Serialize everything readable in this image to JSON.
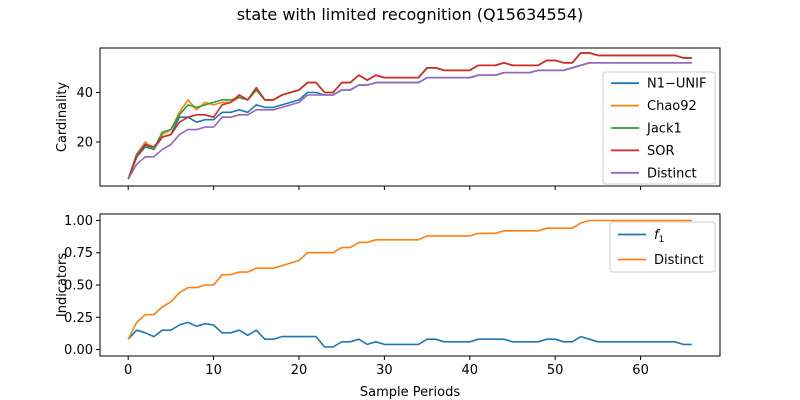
{
  "title": "state with limited recognition (Q15634554)",
  "colors": {
    "blue": "#1f77b4",
    "orange": "#ff7f0e",
    "green": "#2ca02c",
    "red": "#d62728",
    "purple": "#9467bd"
  },
  "chart_data": [
    {
      "type": "line",
      "ylabel": "Cardinality",
      "xlabel": "",
      "xlim": [
        -3.3,
        69.3
      ],
      "ylim": [
        2.2,
        58.0
      ],
      "xticks": [
        0,
        10,
        20,
        30,
        40,
        50,
        60
      ],
      "yticks": [
        20,
        40
      ],
      "legend": "center-right",
      "x": [
        0,
        1,
        2,
        3,
        4,
        5,
        6,
        7,
        8,
        9,
        10,
        11,
        12,
        13,
        14,
        15,
        16,
        17,
        18,
        19,
        20,
        21,
        22,
        23,
        24,
        25,
        26,
        27,
        28,
        29,
        30,
        31,
        32,
        33,
        34,
        35,
        36,
        37,
        38,
        39,
        40,
        41,
        42,
        43,
        44,
        45,
        46,
        47,
        48,
        49,
        50,
        51,
        52,
        53,
        54,
        55,
        56,
        57,
        58,
        59,
        60,
        61,
        62,
        63,
        64,
        65,
        66
      ],
      "series": [
        {
          "name": "N1−UNIF",
          "color": "blue",
          "values": [
            5,
            14,
            18,
            17,
            22,
            23,
            30,
            30,
            28,
            29,
            29,
            32,
            32,
            33,
            32,
            35,
            34,
            34,
            35,
            36,
            37,
            40,
            40,
            39,
            39,
            41,
            41,
            43,
            43,
            44,
            44,
            44,
            44,
            44,
            44,
            46,
            46,
            46,
            46,
            46,
            46,
            47,
            47,
            47,
            48,
            48,
            48,
            48,
            49,
            49,
            49,
            49,
            50,
            51,
            52,
            52,
            52,
            52,
            52,
            52,
            52,
            52,
            52,
            52,
            52,
            52,
            52
          ]
        },
        {
          "name": "Chao92",
          "color": "orange",
          "values": [
            5,
            15,
            20,
            17,
            23,
            25,
            32,
            37,
            33,
            36,
            35,
            36,
            36,
            38,
            37,
            41,
            37,
            37,
            39,
            40,
            41,
            44,
            44,
            40,
            40,
            44,
            44,
            47,
            45,
            47,
            46,
            46,
            46,
            46,
            46,
            50,
            50,
            49,
            49,
            49,
            49,
            51,
            51,
            51,
            52,
            51,
            51,
            51,
            51,
            53,
            53,
            52,
            52,
            56,
            56,
            55,
            55,
            55,
            55,
            55,
            55,
            55,
            55,
            55,
            55,
            54,
            54
          ]
        },
        {
          "name": "Jack1",
          "color": "green",
          "values": [
            5,
            15,
            19,
            17,
            24,
            25,
            31,
            35,
            34,
            35,
            36,
            37,
            37,
            38,
            37,
            41,
            37,
            37,
            39,
            40,
            41,
            44,
            44,
            40,
            40,
            44,
            44,
            47,
            45,
            47,
            46,
            46,
            46,
            46,
            46,
            50,
            50,
            49,
            49,
            49,
            49,
            51,
            51,
            51,
            52,
            51,
            51,
            51,
            51,
            53,
            53,
            52,
            52,
            56,
            56,
            55,
            55,
            55,
            55,
            55,
            55,
            55,
            55,
            55,
            55,
            54,
            54
          ]
        },
        {
          "name": "SOR",
          "color": "red",
          "values": [
            5,
            14,
            19,
            18,
            22,
            23,
            28,
            30,
            31,
            31,
            30,
            35,
            36,
            39,
            37,
            42,
            37,
            37,
            39,
            40,
            41,
            44,
            44,
            40,
            40,
            44,
            44,
            47,
            45,
            47,
            46,
            46,
            46,
            46,
            46,
            50,
            50,
            49,
            49,
            49,
            49,
            51,
            51,
            51,
            52,
            51,
            51,
            51,
            51,
            53,
            53,
            52,
            52,
            56,
            56,
            55,
            55,
            55,
            55,
            55,
            55,
            55,
            55,
            55,
            55,
            54,
            54
          ]
        },
        {
          "name": "Distinct",
          "color": "purple",
          "values": [
            5,
            11,
            14,
            14,
            17,
            19,
            23,
            25,
            25,
            26,
            26,
            30,
            30,
            31,
            31,
            33,
            33,
            33,
            34,
            35,
            36,
            39,
            39,
            39,
            39,
            41,
            41,
            43,
            43,
            44,
            44,
            44,
            44,
            44,
            44,
            46,
            46,
            46,
            46,
            46,
            46,
            47,
            47,
            47,
            48,
            48,
            48,
            48,
            49,
            49,
            49,
            49,
            50,
            51,
            52,
            52,
            52,
            52,
            52,
            52,
            52,
            52,
            52,
            52,
            52,
            52,
            52
          ]
        }
      ]
    },
    {
      "type": "line",
      "ylabel": "Indicators",
      "xlabel": "Sample Periods",
      "xlim": [
        -3.3,
        69.3
      ],
      "ylim": [
        -0.05,
        1.05
      ],
      "xticks": [
        0,
        10,
        20,
        30,
        40,
        50,
        60
      ],
      "yticks": [
        "0.00",
        "0.25",
        "0.50",
        "0.75",
        "1.00"
      ],
      "legend": "upper right",
      "x": [
        0,
        1,
        2,
        3,
        4,
        5,
        6,
        7,
        8,
        9,
        10,
        11,
        12,
        13,
        14,
        15,
        16,
        17,
        18,
        19,
        20,
        21,
        22,
        23,
        24,
        25,
        26,
        27,
        28,
        29,
        30,
        31,
        32,
        33,
        34,
        35,
        36,
        37,
        38,
        39,
        40,
        41,
        42,
        43,
        44,
        45,
        46,
        47,
        48,
        49,
        50,
        51,
        52,
        53,
        54,
        55,
        56,
        57,
        58,
        59,
        60,
        61,
        62,
        63,
        64,
        65,
        66
      ],
      "series": [
        {
          "name": "f1",
          "label_main": "f",
          "label_sub": "1",
          "color": "blue",
          "values": [
            0.08,
            0.15,
            0.13,
            0.1,
            0.15,
            0.15,
            0.19,
            0.21,
            0.18,
            0.2,
            0.19,
            0.13,
            0.13,
            0.15,
            0.11,
            0.15,
            0.08,
            0.08,
            0.1,
            0.1,
            0.1,
            0.1,
            0.1,
            0.02,
            0.02,
            0.06,
            0.06,
            0.08,
            0.04,
            0.06,
            0.04,
            0.04,
            0.04,
            0.04,
            0.04,
            0.08,
            0.08,
            0.06,
            0.06,
            0.06,
            0.06,
            0.08,
            0.08,
            0.08,
            0.08,
            0.06,
            0.06,
            0.06,
            0.06,
            0.08,
            0.08,
            0.06,
            0.06,
            0.1,
            0.08,
            0.06,
            0.06,
            0.06,
            0.06,
            0.06,
            0.06,
            0.06,
            0.06,
            0.06,
            0.06,
            0.04,
            0.04
          ]
        },
        {
          "name": "Distinct",
          "color": "orange",
          "values": [
            0.08,
            0.21,
            0.27,
            0.27,
            0.33,
            0.37,
            0.44,
            0.48,
            0.48,
            0.5,
            0.5,
            0.58,
            0.58,
            0.6,
            0.6,
            0.63,
            0.63,
            0.63,
            0.65,
            0.67,
            0.69,
            0.75,
            0.75,
            0.75,
            0.75,
            0.79,
            0.79,
            0.83,
            0.83,
            0.85,
            0.85,
            0.85,
            0.85,
            0.85,
            0.85,
            0.88,
            0.88,
            0.88,
            0.88,
            0.88,
            0.88,
            0.9,
            0.9,
            0.9,
            0.92,
            0.92,
            0.92,
            0.92,
            0.92,
            0.94,
            0.94,
            0.94,
            0.94,
            0.98,
            1.0,
            1.0,
            1.0,
            1.0,
            1.0,
            1.0,
            1.0,
            1.0,
            1.0,
            1.0,
            1.0,
            1.0,
            1.0
          ]
        }
      ]
    }
  ]
}
